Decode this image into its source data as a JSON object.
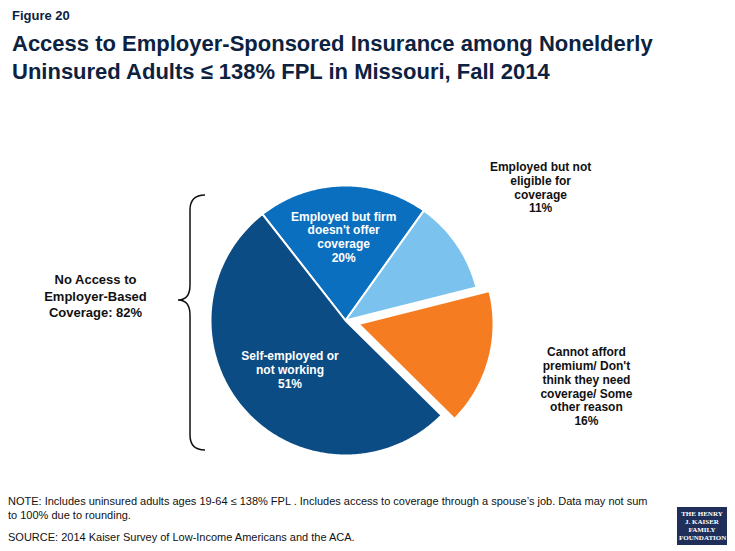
{
  "figure_label": "Figure 20",
  "note": "NOTE: Includes uninsured adults ages 19-64 ≤ 138% FPL . Includes access to coverage through a spouse’s job. Data may not sum to 100% due to rounding.",
  "source": "SOURCE: 2014 Kaiser Survey of Low-Income Americans and the ACA.",
  "logo": "THE HENRY J. KAISER FAMILY FOUNDATION",
  "chart_data": {
    "type": "pie",
    "title": "Access to Employer-Sponsored Insurance among Nonelderly Uninsured Adults ≤ 138% FPL in Missouri, Fall 2014",
    "categories": [
      "Employed but firm doesn't offer coverage",
      "Employed but not eligible for coverage",
      "Cannot afford premium/ Don't think they need coverage/ Some other reason",
      "Self-employed or not working"
    ],
    "values": [
      20,
      11,
      16,
      51
    ],
    "value_labels": [
      "20%",
      "11%",
      "16%",
      "51%"
    ],
    "colors": [
      "#0b6fbf",
      "#7cc2ee",
      "#f57c20",
      "#0c4c84"
    ],
    "data_labels": true,
    "annotation": "No Access to Employer-Based Coverage: 82%"
  }
}
